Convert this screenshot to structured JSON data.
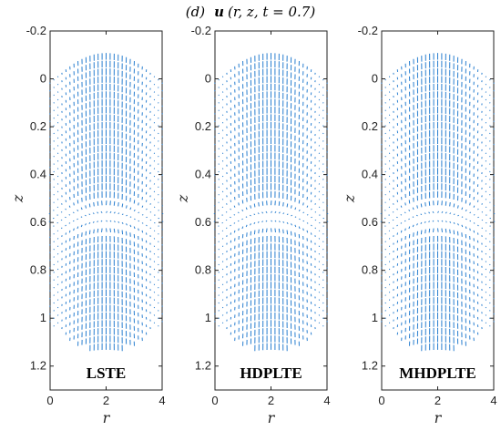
{
  "title": {
    "prefix": "(d)",
    "vector": "u",
    "args": "(r, z, t = 0.7)"
  },
  "colors": {
    "quiver": "#2a7fd0",
    "axes": "#222222"
  },
  "chart_data": [
    {
      "type": "quiver",
      "panel_label": "LSTE",
      "xlabel": "r",
      "ylabel": "z",
      "xlim": [
        0,
        4
      ],
      "ylim": [
        -0.2,
        1.3
      ],
      "y_reversed": true,
      "xticks": [
        "0",
        "2",
        "4"
      ],
      "yticks": [
        "-0.2",
        "0",
        "0.2",
        "0.4",
        "0.6",
        "0.8",
        "1",
        "1.2"
      ],
      "grid": false,
      "boundary": "bulged cylinder, z ≈ -0.1 to 0 at top and ≈1.03 to 1.13 at bottom",
      "flow_pattern": "strong vertical flow near r ≈ 2, separation at z ≈ 0.55–0.6"
    },
    {
      "type": "quiver",
      "panel_label": "HDPLTE",
      "xlabel": "r",
      "ylabel": "z",
      "xlim": [
        0,
        4
      ],
      "ylim": [
        -0.2,
        1.3
      ],
      "y_reversed": true,
      "xticks": [
        "0",
        "2",
        "4"
      ],
      "yticks": [
        "-0.2",
        "0",
        "0.2",
        "0.4",
        "0.6",
        "0.8",
        "1",
        "1.2"
      ],
      "grid": false
    },
    {
      "type": "quiver",
      "panel_label": "MHDPLTE",
      "xlabel": "r",
      "ylabel": "z",
      "xlim": [
        0,
        4
      ],
      "ylim": [
        -0.2,
        1.3
      ],
      "y_reversed": true,
      "xticks": [
        "0",
        "2",
        "4"
      ],
      "yticks": [
        "-0.2",
        "0",
        "0.2",
        "0.4",
        "0.6",
        "0.8",
        "1",
        "1.2"
      ],
      "grid": false
    }
  ]
}
